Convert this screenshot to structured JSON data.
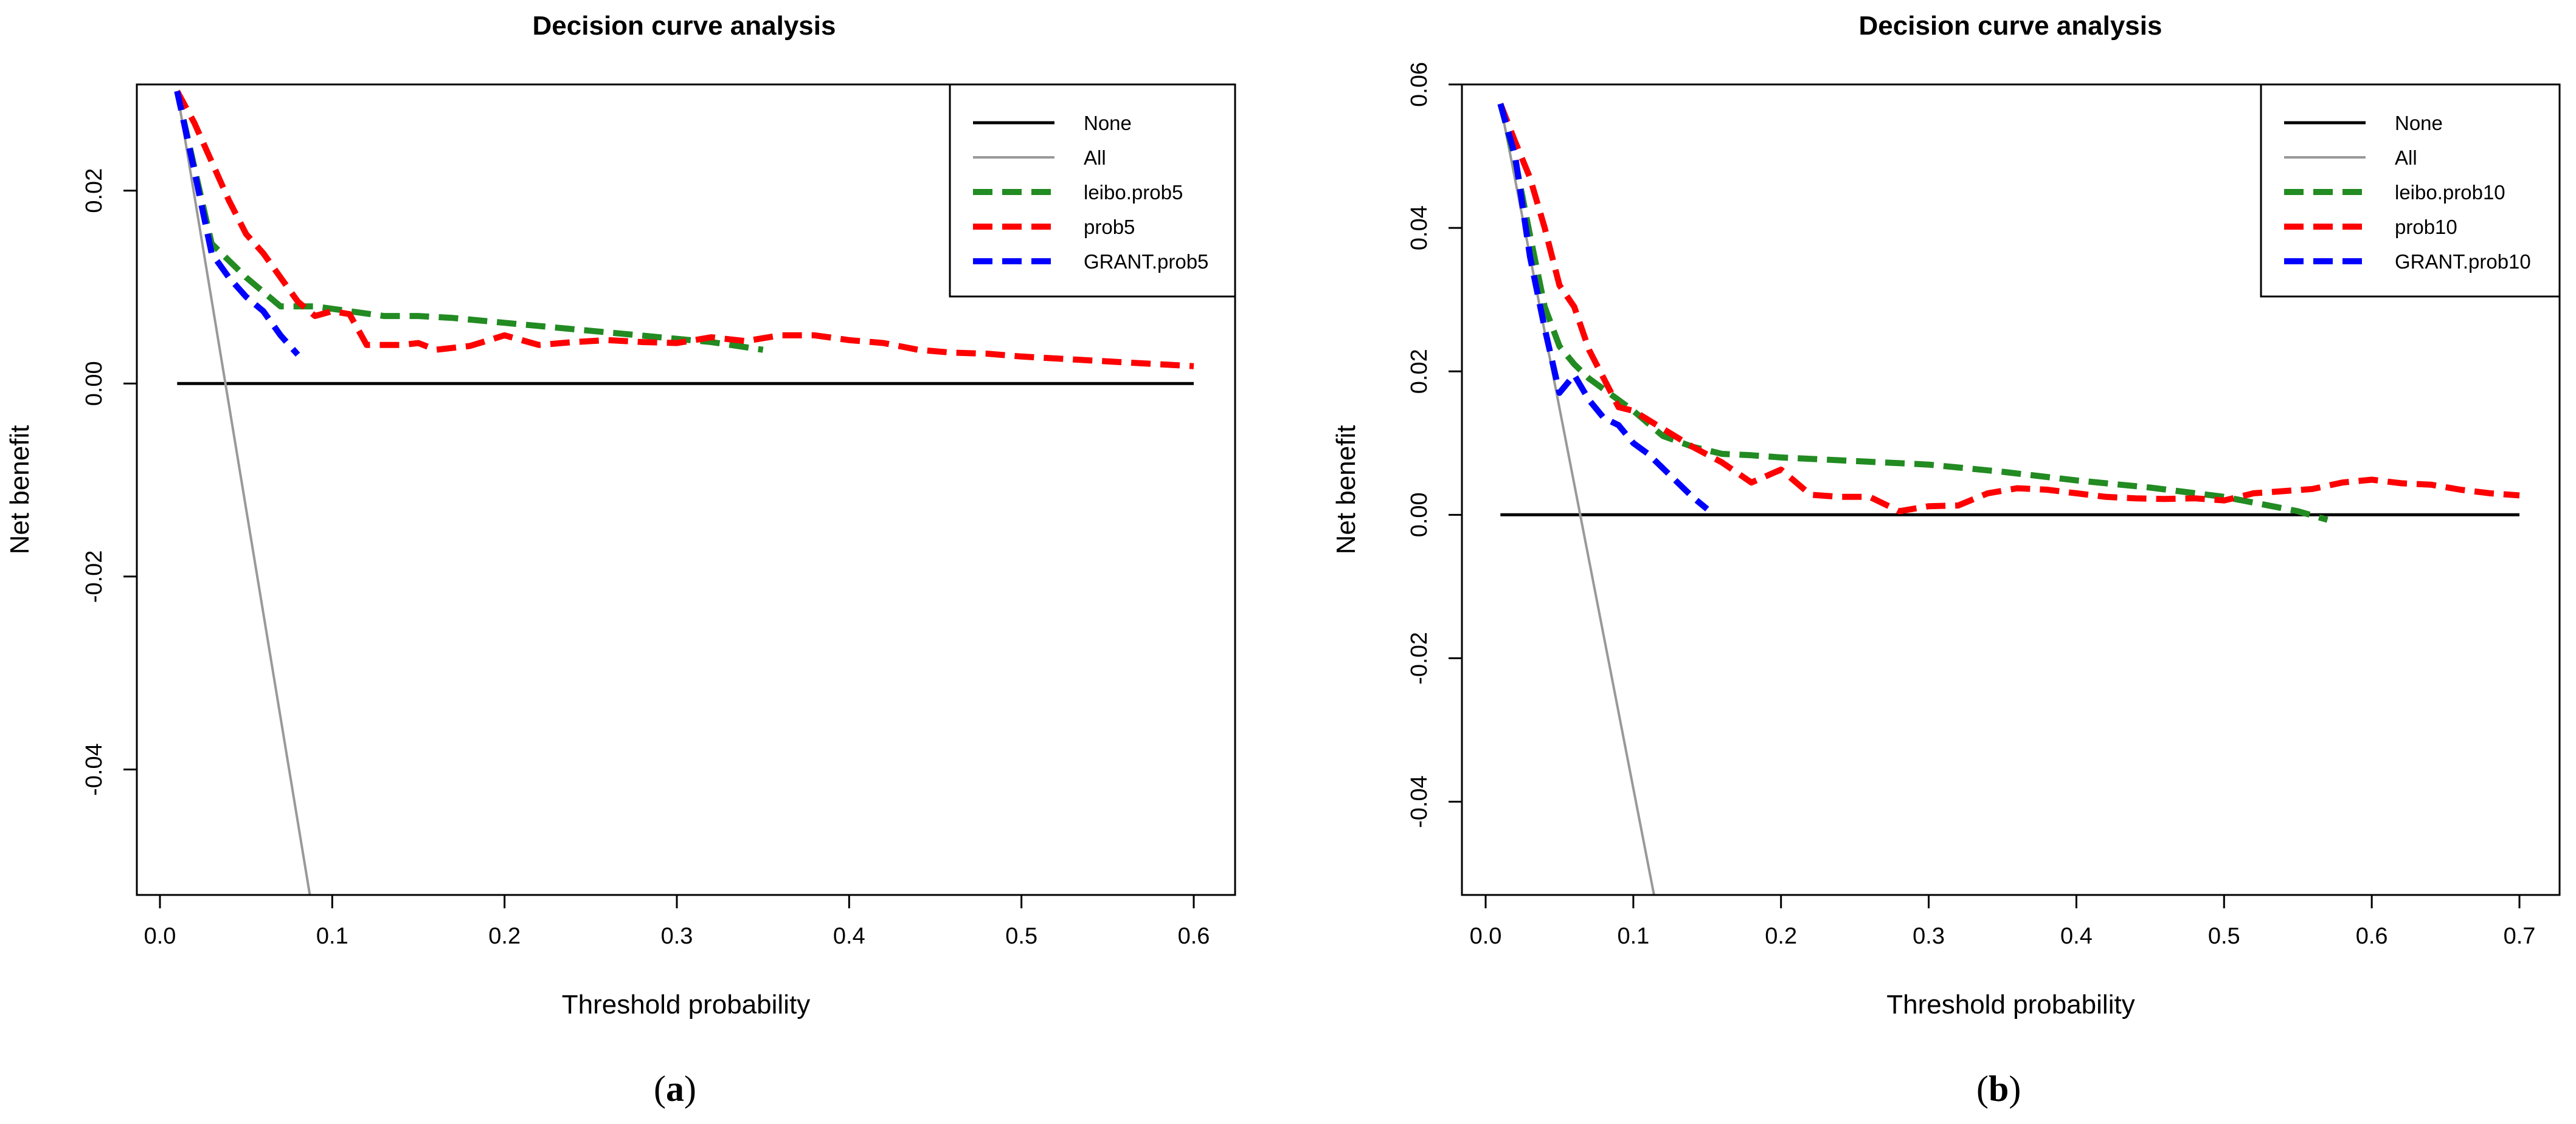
{
  "chart_data": [
    {
      "type": "line",
      "title": "Decision curve analysis",
      "xlabel": "Threshold probability",
      "ylabel": "Net benefit",
      "caption_open": "(",
      "caption_letter": "a",
      "caption_close": ")",
      "xlim": [
        0.0,
        0.6
      ],
      "ylim": [
        -0.053,
        0.031
      ],
      "xticks": [
        0.0,
        0.1,
        0.2,
        0.3,
        0.4,
        0.5,
        0.6
      ],
      "xtick_labels": [
        "0.0",
        "0.1",
        "0.2",
        "0.3",
        "0.4",
        "0.5",
        "0.6"
      ],
      "yticks": [
        -0.04,
        -0.02,
        0.0,
        0.02
      ],
      "ytick_labels": [
        "-0.04",
        "-0.02",
        "0.00",
        "0.02"
      ],
      "legend_position": "top-right",
      "series": [
        {
          "name": "None",
          "color": "#000000",
          "dash": "solid",
          "x": [
            0.01,
            0.6
          ],
          "y": [
            0.0,
            0.0
          ]
        },
        {
          "name": "All",
          "color": "#999999",
          "dash": "solid",
          "x": [
            0.01,
            0.087
          ],
          "y": [
            0.0303,
            -0.053
          ]
        },
        {
          "name": "leibo.prob5",
          "color": "#228b22",
          "dash": "dashed",
          "x": [
            0.01,
            0.03,
            0.05,
            0.07,
            0.09,
            0.11,
            0.13,
            0.15,
            0.17,
            0.2,
            0.23,
            0.26,
            0.29,
            0.32,
            0.35
          ],
          "y": [
            0.0303,
            0.0145,
            0.011,
            0.008,
            0.008,
            0.0075,
            0.007,
            0.007,
            0.0068,
            0.0063,
            0.0058,
            0.0053,
            0.0048,
            0.0043,
            0.0035
          ]
        },
        {
          "name": "prob5",
          "color": "#ff0000",
          "dash": "dashed",
          "x": [
            0.01,
            0.02,
            0.03,
            0.04,
            0.05,
            0.06,
            0.07,
            0.08,
            0.09,
            0.1,
            0.11,
            0.12,
            0.14,
            0.15,
            0.16,
            0.18,
            0.2,
            0.22,
            0.24,
            0.26,
            0.28,
            0.3,
            0.32,
            0.34,
            0.36,
            0.38,
            0.4,
            0.42,
            0.44,
            0.46,
            0.48,
            0.5,
            0.52,
            0.54,
            0.56,
            0.58,
            0.6
          ],
          "y": [
            0.0303,
            0.027,
            0.023,
            0.019,
            0.0155,
            0.0135,
            0.011,
            0.0085,
            0.007,
            0.0075,
            0.0072,
            0.004,
            0.004,
            0.0042,
            0.0035,
            0.0039,
            0.005,
            0.004,
            0.0043,
            0.0045,
            0.0043,
            0.0042,
            0.0048,
            0.0044,
            0.005,
            0.005,
            0.0045,
            0.0042,
            0.0035,
            0.0032,
            0.0031,
            0.0028,
            0.0026,
            0.0024,
            0.0022,
            0.002,
            0.0018
          ]
        },
        {
          "name": "GRANT.prob5",
          "color": "#0000ff",
          "dash": "dashed",
          "x": [
            0.01,
            0.02,
            0.03,
            0.04,
            0.05,
            0.06,
            0.07,
            0.08
          ],
          "y": [
            0.0303,
            0.022,
            0.0135,
            0.011,
            0.009,
            0.0075,
            0.005,
            0.003
          ]
        }
      ]
    },
    {
      "type": "line",
      "title": "Decision curve analysis",
      "xlabel": "Threshold probability",
      "ylabel": "Net benefit",
      "caption_open": "(",
      "caption_letter": "b",
      "caption_close": ")",
      "xlim": [
        0.0,
        0.7
      ],
      "ylim": [
        -0.053,
        0.06
      ],
      "xticks": [
        0.0,
        0.1,
        0.2,
        0.3,
        0.4,
        0.5,
        0.6,
        0.7
      ],
      "xtick_labels": [
        "0.0",
        "0.1",
        "0.2",
        "0.3",
        "0.4",
        "0.5",
        "0.6",
        "0.7"
      ],
      "yticks": [
        -0.04,
        -0.02,
        0.0,
        0.02,
        0.04,
        0.06
      ],
      "ytick_labels": [
        "-0.04",
        "-0.02",
        "0.00",
        "0.02",
        "0.04",
        "0.06"
      ],
      "legend_position": "top-right",
      "series": [
        {
          "name": "None",
          "color": "#000000",
          "dash": "solid",
          "x": [
            0.01,
            0.7
          ],
          "y": [
            0.0,
            0.0
          ]
        },
        {
          "name": "All",
          "color": "#999999",
          "dash": "solid",
          "x": [
            0.01,
            0.114
          ],
          "y": [
            0.0573,
            -0.053
          ]
        },
        {
          "name": "leibo.prob10",
          "color": "#228b22",
          "dash": "dashed",
          "x": [
            0.01,
            0.02,
            0.03,
            0.04,
            0.05,
            0.06,
            0.07,
            0.08,
            0.1,
            0.12,
            0.14,
            0.16,
            0.18,
            0.2,
            0.25,
            0.3,
            0.35,
            0.4,
            0.45,
            0.5,
            0.55,
            0.57
          ],
          "y": [
            0.0573,
            0.0495,
            0.039,
            0.029,
            0.0235,
            0.021,
            0.019,
            0.0175,
            0.0145,
            0.011,
            0.0095,
            0.0085,
            0.0083,
            0.008,
            0.0075,
            0.007,
            0.006,
            0.0048,
            0.0038,
            0.0025,
            0.0005,
            -0.0007
          ]
        },
        {
          "name": "prob10",
          "color": "#ff0000",
          "dash": "dashed",
          "x": [
            0.01,
            0.02,
            0.03,
            0.04,
            0.05,
            0.06,
            0.07,
            0.08,
            0.09,
            0.1,
            0.12,
            0.14,
            0.16,
            0.18,
            0.2,
            0.22,
            0.24,
            0.26,
            0.28,
            0.3,
            0.32,
            0.34,
            0.36,
            0.38,
            0.4,
            0.42,
            0.44,
            0.46,
            0.48,
            0.5,
            0.52,
            0.54,
            0.56,
            0.58,
            0.6,
            0.62,
            0.64,
            0.66,
            0.68,
            0.7
          ],
          "y": [
            0.0573,
            0.052,
            0.047,
            0.04,
            0.032,
            0.029,
            0.023,
            0.019,
            0.015,
            0.0145,
            0.012,
            0.0095,
            0.0073,
            0.0045,
            0.0063,
            0.0028,
            0.0025,
            0.0025,
            0.0005,
            0.0012,
            0.0013,
            0.003,
            0.0037,
            0.0035,
            0.003,
            0.0025,
            0.0023,
            0.0022,
            0.0023,
            0.002,
            0.003,
            0.0033,
            0.0036,
            0.0045,
            0.0049,
            0.0044,
            0.0042,
            0.0035,
            0.003,
            0.0027
          ]
        },
        {
          "name": "GRANT.prob10",
          "color": "#0000ff",
          "dash": "dashed",
          "x": [
            0.01,
            0.02,
            0.03,
            0.04,
            0.05,
            0.06,
            0.07,
            0.08,
            0.09,
            0.1,
            0.11,
            0.12,
            0.13,
            0.14,
            0.15
          ],
          "y": [
            0.0573,
            0.05,
            0.036,
            0.026,
            0.017,
            0.0195,
            0.016,
            0.0135,
            0.0125,
            0.01,
            0.0085,
            0.0065,
            0.0045,
            0.0025,
            0.0008
          ]
        }
      ]
    }
  ]
}
